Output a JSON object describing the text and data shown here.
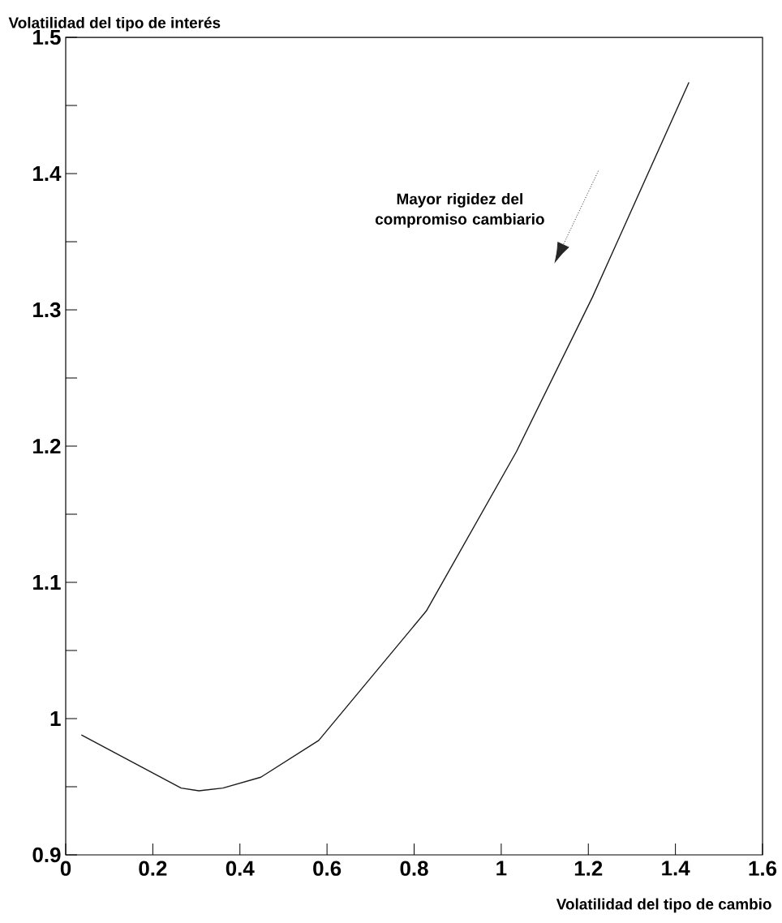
{
  "chart_data": {
    "type": "line",
    "xlabel": "Volatilidad del tipo de cambio",
    "ylabel": "Volatilidad del tipo de interés",
    "annotations": [
      "Mayor rigidez del compromiso cambiario"
    ],
    "x": [
      0.036,
      0.265,
      0.306,
      0.361,
      0.448,
      0.581,
      0.828,
      1.035,
      1.209,
      1.431
    ],
    "series": [
      {
        "color": "#1a1a1a",
        "values": [
          0.988,
          0.949,
          0.947,
          0.949,
          0.957,
          0.984,
          1.079,
          1.196,
          1.309,
          1.467
        ]
      }
    ],
    "xlim": [
      0,
      1.6
    ],
    "ylim": [
      0.9,
      1.5
    ],
    "xticks": [
      0,
      0.2,
      0.4,
      0.6,
      0.8,
      1,
      1.2,
      1.4,
      1.6
    ],
    "yticks": [
      0.9,
      {
        "value": 0.95,
        "label": null
      },
      1,
      {
        "value": 1.05,
        "label": null
      },
      1.1,
      {
        "value": 1.15,
        "label": null
      },
      1.2,
      {
        "value": 1.25,
        "label": null
      },
      1.3,
      {
        "value": 1.35,
        "label": null
      },
      1.4,
      {
        "value": 1.45,
        "label": null
      },
      1.5
    ],
    "line_style": "solid"
  }
}
